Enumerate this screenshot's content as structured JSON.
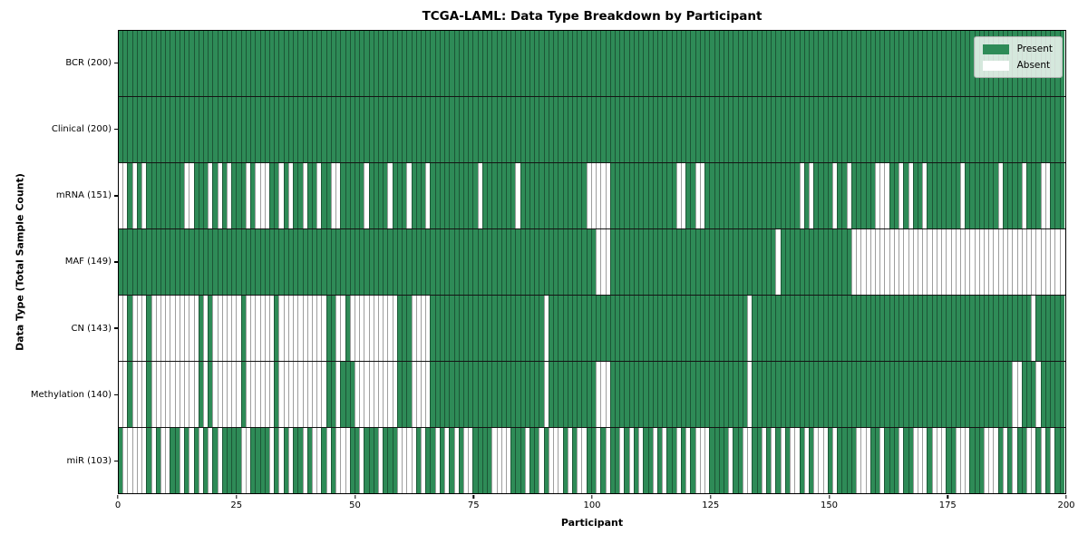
{
  "figure": {
    "title": "TCGA-LAML: Data Type Breakdown by Participant",
    "xlabel": "Participant",
    "ylabel": "Data Type (Total Sample Count)"
  },
  "legend": {
    "items": [
      {
        "label": "Present",
        "color": "#2e8b57"
      },
      {
        "label": "Absent",
        "color": "#ffffff"
      }
    ]
  },
  "chart_data": {
    "type": "heatmap",
    "title": "TCGA-LAML: Data Type Breakdown by Participant",
    "xlabel": "Participant",
    "ylabel": "Data Type (Total Sample Count)",
    "x_axis": {
      "min": 0,
      "max": 200,
      "ticks": [
        0,
        25,
        50,
        75,
        100,
        125,
        150,
        175,
        200
      ]
    },
    "value_encoding": {
      "1": "Present",
      "0": "Absent"
    },
    "colors": {
      "present": "#2e8b57",
      "absent": "#ffffff",
      "cell_edge": "rgba(0,0,0,0.38)",
      "row_divider": "#141414"
    },
    "legend_position": "upper right",
    "grid": false,
    "rows": [
      {
        "name": "BCR",
        "label": "BCR (200)",
        "present_count": 200,
        "pattern": "11111111111111111111111111111111111111111111111111111111111111111111111111111111111111111111111111111111111111111111111111111111111111111111111111111111111111111111111111111111111111111111111111111111"
      },
      {
        "name": "Clinical",
        "label": "Clinical (200)",
        "present_count": 200,
        "pattern": "11111111111111111111111111111111111111111111111111111111111111111111111111111111111111111111111111111111111111111111111111111111111111111111111111111111111111111111111111111111111111111111111111111111"
      },
      {
        "name": "mRNA",
        "label": "mRNA (151)",
        "present_count": 151,
        "pattern": "0010101111111100111010101110100011010110110110011111011110111011101111111111011111110111111111111110000011111111111111001100111111111111111111110101111011011111000110101101111111011111110111101110011111"
      },
      {
        "name": "MAF",
        "label": "MAF (149)",
        "present_count": 149,
        "pattern": "11111111111111111111111111111111111111111111111111111111111111111111111111111111111111111111111111111000111111111111111111111111111111111110111111111111111000000000000000000000000000000000000000000000"
      },
      {
        "name": "CN",
        "label": "CN (143)",
        "present_count": 143,
        "pattern": "00100010000000000101000000100000010000000000110010000000000111000011111111111111111111111101111111111111111111111111111111111111111110111111111111111111111111111111111111111111111111111111111110111111111"
      },
      {
        "name": "Methylation",
        "label": "Methylation (140)",
        "present_count": 140,
        "pattern": "00100010000000000101000000100000010000000000110111000000000111000011111111111111111111111101111111111000111111111111111111111111111110111111111111111111111111111111111111111111111111111111100111011111111"
      },
      {
        "name": "miR",
        "label": "miR (103)",
        "present_count": 103,
        "pattern": "10000010100110101010101111001111010101101001010001101110111000010110101010011110000111011010001010011010110101011010110101000111101100110101010010100010111100011011101100010001100011100010101100101011"
      }
    ]
  }
}
